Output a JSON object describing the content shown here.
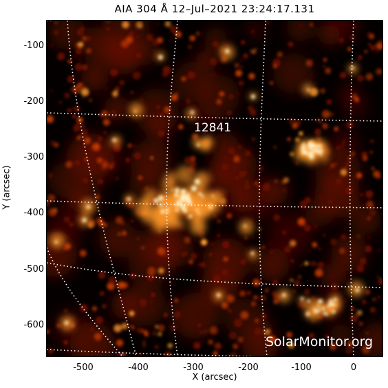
{
  "title": "AIA 304 Å 12–Jul–2021 23:24:17.131",
  "axes": {
    "xlabel": "X (arcsec)",
    "ylabel": "Y (arcsec)",
    "xticks": [
      "-500",
      "-400",
      "-300",
      "-200",
      "-100",
      "0"
    ],
    "yticks": [
      "-100",
      "-200",
      "-300",
      "-400",
      "-500",
      "-600"
    ]
  },
  "region_label": "12841",
  "watermark": "SolarMonitor.org",
  "colors": {
    "background": "#050000",
    "emission_dim": "#6a0f00",
    "emission_mid": "#c23a00",
    "emission_bright": "#ff9a2a",
    "emission_core": "#fff2c8",
    "grid": "#ffffff"
  }
}
